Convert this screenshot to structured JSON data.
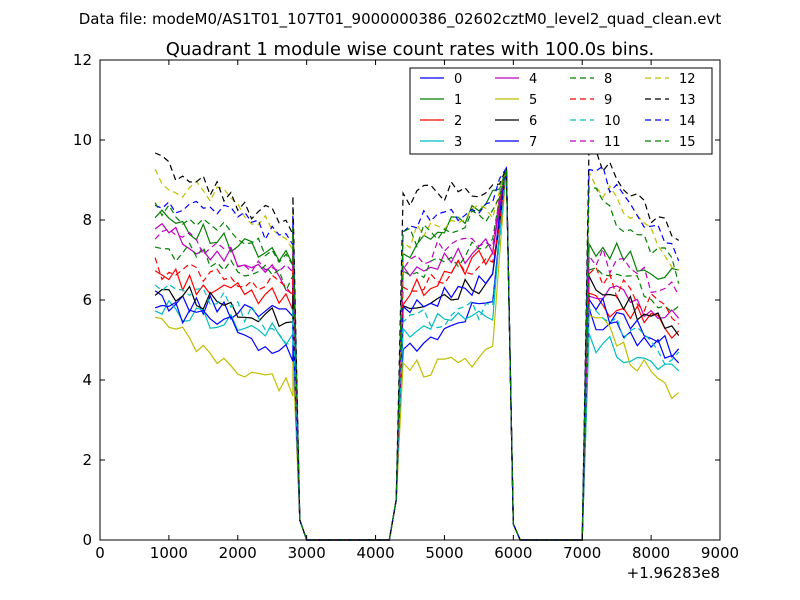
{
  "chart_data": {
    "type": "line",
    "suptitle": "Data file: modeM0/AS1T01_107T01_9000000386_02602cztM0_level2_quad_clean.evt",
    "title": "Quadrant 1 module wise count rates with 100.0s bins.",
    "xlabel": "",
    "ylabel": "",
    "x_offset_label": "+1.96283e8",
    "xlim": [
      0,
      9000
    ],
    "ylim": [
      0,
      12
    ],
    "xticks": [
      0,
      1000,
      2000,
      3000,
      4000,
      5000,
      6000,
      7000,
      8000,
      9000
    ],
    "yticks": [
      0,
      2,
      4,
      6,
      8,
      10,
      12
    ],
    "grid": false,
    "legend": {
      "location": "upper right",
      "columns": 4
    },
    "segments": [
      {
        "start": 800,
        "end": 2800,
        "step": 100
      },
      {
        "start": 4400,
        "end": 5900,
        "step": 100
      },
      {
        "start": 7100,
        "end": 8400,
        "step": 100
      }
    ],
    "gaps": [
      {
        "x": [
          2900,
          3000,
          4200,
          4300
        ],
        "y": [
          0.5,
          0,
          0,
          1
        ]
      },
      {
        "x": [
          6000,
          6100,
          7000
        ],
        "y": [
          0.4,
          0,
          0
        ]
      }
    ],
    "series": [
      {
        "name": "0",
        "color": "#0000ff",
        "dashed": false,
        "levels": [
          6.0,
          5.8,
          5.8,
          9.3,
          4.6,
          6.2,
          5.6,
          4.7
        ]
      },
      {
        "name": "1",
        "color": "#008000",
        "dashed": false,
        "levels": [
          8.3,
          7.4,
          7.0,
          9.3,
          7.0,
          8.9,
          7.4,
          6.5
        ]
      },
      {
        "name": "2",
        "color": "#ff0000",
        "dashed": false,
        "levels": [
          6.7,
          6.2,
          6.0,
          9.3,
          6.1,
          7.3,
          5.9,
          5.3
        ]
      },
      {
        "name": "3",
        "color": "#00bfbf",
        "dashed": false,
        "levels": [
          5.8,
          5.5,
          5.0,
          9.3,
          5.3,
          5.7,
          5.0,
          4.2
        ]
      },
      {
        "name": "4",
        "color": "#bf00bf",
        "dashed": false,
        "levels": [
          7.8,
          7.1,
          6.4,
          9.3,
          6.8,
          7.4,
          6.3,
          5.5
        ]
      },
      {
        "name": "5",
        "color": "#bfbf00",
        "dashed": false,
        "levels": [
          5.5,
          4.4,
          3.8,
          9.3,
          4.2,
          4.8,
          5.6,
          3.5
        ]
      },
      {
        "name": "6",
        "color": "#000000",
        "dashed": false,
        "levels": [
          6.3,
          5.9,
          5.5,
          9.3,
          5.9,
          6.5,
          6.3,
          5.2
        ]
      },
      {
        "name": "7",
        "color": "#0000ff",
        "dashed": false,
        "levels": [
          5.9,
          5.4,
          4.6,
          9.3,
          5.8,
          6.6,
          6.0,
          4.6
        ]
      },
      {
        "name": "8",
        "color": "#008000",
        "dashed": true,
        "levels": [
          7.3,
          7.0,
          6.4,
          9.3,
          6.6,
          7.5,
          7.0,
          5.8
        ]
      },
      {
        "name": "9",
        "color": "#ff0000",
        "dashed": true,
        "levels": [
          6.8,
          6.6,
          6.3,
          9.3,
          6.4,
          7.0,
          6.6,
          5.6
        ]
      },
      {
        "name": "10",
        "color": "#00bfbf",
        "dashed": true,
        "levels": [
          6.2,
          6.0,
          5.0,
          9.3,
          5.4,
          5.9,
          5.8,
          4.4
        ]
      },
      {
        "name": "11",
        "color": "#bf00bf",
        "dashed": true,
        "levels": [
          7.7,
          7.2,
          6.6,
          9.3,
          7.0,
          7.6,
          7.2,
          6.1
        ]
      },
      {
        "name": "12",
        "color": "#bfbf00",
        "dashed": true,
        "levels": [
          9.0,
          8.6,
          7.4,
          9.3,
          7.5,
          8.4,
          9.1,
          6.8
        ]
      },
      {
        "name": "13",
        "color": "#000000",
        "dashed": true,
        "levels": [
          9.5,
          8.6,
          7.8,
          9.3,
          8.6,
          8.9,
          9.8,
          7.4
        ]
      },
      {
        "name": "14",
        "color": "#0000ff",
        "dashed": true,
        "levels": [
          8.4,
          8.2,
          7.3,
          9.3,
          7.9,
          8.5,
          9.5,
          7.0
        ]
      },
      {
        "name": "15",
        "color": "#008000",
        "dashed": true,
        "levels": [
          8.2,
          7.8,
          7.0,
          9.3,
          7.5,
          8.2,
          8.7,
          6.7
        ]
      }
    ]
  }
}
